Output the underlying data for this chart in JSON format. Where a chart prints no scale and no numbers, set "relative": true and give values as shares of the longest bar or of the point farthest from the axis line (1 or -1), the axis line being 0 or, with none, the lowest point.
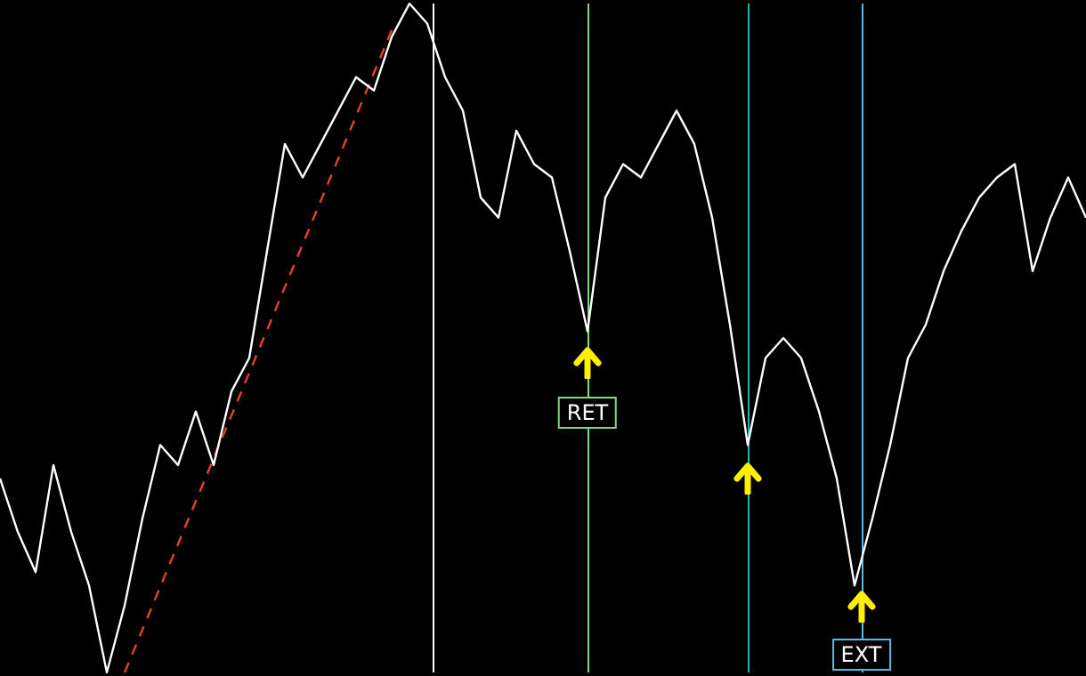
{
  "chart_data": {
    "type": "line",
    "relative": true,
    "marker": "none",
    "categories": [
      null,
      null,
      null,
      null,
      null,
      null,
      null,
      null,
      null,
      null,
      null,
      null,
      null,
      null,
      null,
      null,
      null,
      null,
      null,
      null,
      null,
      null,
      null,
      null,
      null,
      null,
      null,
      null,
      null,
      null,
      null,
      null,
      null,
      null,
      null,
      null,
      null,
      null,
      null,
      null,
      null,
      null,
      null,
      null,
      null,
      null,
      null,
      null,
      null,
      null,
      null,
      null,
      null,
      null,
      null,
      null,
      null,
      null,
      null,
      null,
      null,
      null
    ],
    "series": [
      {
        "color": "#ffffff",
        "values": [
          0.29,
          0.21,
          0.15,
          0.31,
          0.21,
          0.13,
          0,
          0.1,
          0.23,
          0.34,
          0.31,
          0.39,
          0.31,
          0.42,
          0.47,
          0.63,
          0.79,
          0.74,
          0.79,
          0.84,
          0.89,
          0.87,
          0.95,
          1,
          0.97,
          0.89,
          0.84,
          0.71,
          0.68,
          0.81,
          0.76,
          0.74,
          0.63,
          0.51,
          0.71,
          0.76,
          0.74,
          0.79,
          0.84,
          0.79,
          0.68,
          0.52,
          0.34,
          0.47,
          0.5,
          0.47,
          0.39,
          0.29,
          0.13,
          0.23,
          0.34,
          0.47,
          0.52,
          0.6,
          0.66,
          0.71,
          0.74,
          0.76,
          0.6,
          0.68,
          0.74,
          0.68
        ]
      },
      {
        "color": "#e8402f",
        "line_style": "dashed",
        "values": [
          null,
          null,
          null,
          null,
          null,
          null,
          null,
          0,
          null,
          null,
          null,
          null,
          null,
          null,
          null,
          null,
          null,
          null,
          null,
          null,
          null,
          null,
          0.96,
          null,
          null,
          null,
          null,
          null,
          null,
          null,
          null,
          null,
          null,
          null,
          null,
          null,
          null,
          null,
          null,
          null,
          null,
          null,
          null,
          null,
          null,
          null,
          null,
          null,
          null,
          null,
          null,
          null,
          null,
          null,
          null,
          null,
          null,
          null,
          null,
          null,
          null,
          null
        ]
      }
    ],
    "annotations": [
      "RET",
      "EXT"
    ]
  }
}
